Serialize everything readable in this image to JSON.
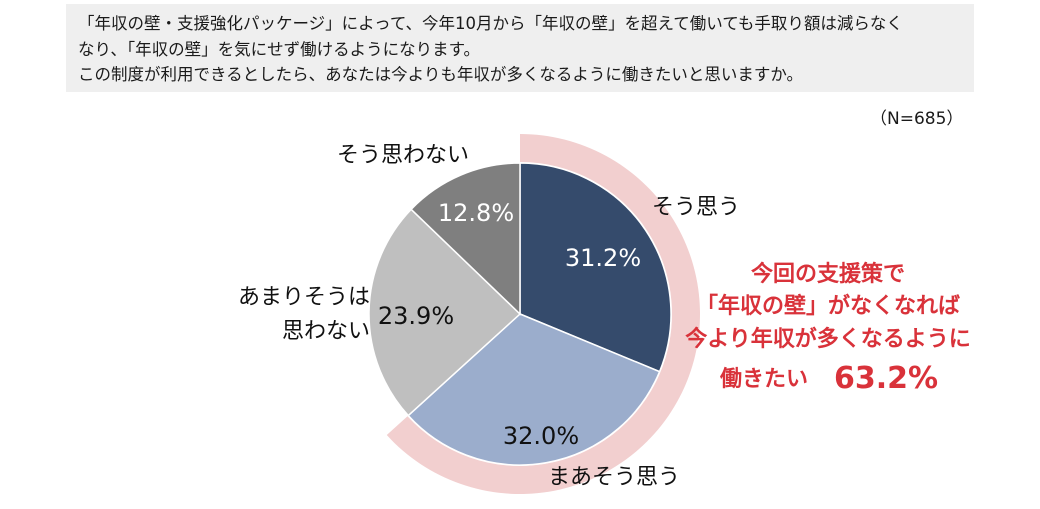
{
  "question": {
    "lines": [
      "「年収の壁・支援強化パッケージ」によって、今年10月から「年収の壁」を超えて働いても手取り額は減らなく",
      "なり、「年収の壁」を気にせず働けるようになります。",
      "この制度が利用できるとしたら、あなたは今よりも年収が多くなるように働きたいと思いますか。"
    ]
  },
  "sample_size": "（N=685）",
  "chart_data": {
    "type": "pie",
    "title": "",
    "slices": [
      {
        "label": "そう思う",
        "value": 31.2,
        "display": "31.2%",
        "color": "#354b6c",
        "text_color": "#ffffff"
      },
      {
        "label": "まあそう思う",
        "value": 32.0,
        "display": "32.0%",
        "color": "#9badcc",
        "text_color": "#111111"
      },
      {
        "label": "あまりそうは思わない",
        "value": 23.9,
        "display": "23.9%",
        "color": "#bfbfbf",
        "text_color": "#111111"
      },
      {
        "label": "そう思わない",
        "value": 12.8,
        "display": "12.8%",
        "color": "#7f7f7f",
        "text_color": "#ffffff"
      }
    ],
    "category_labels": {
      "so_omou": "そう思う",
      "maa_so_omou": "まあそう思う",
      "amari_line1": "あまりそうは",
      "amari_line2": "思わない",
      "so_omowanai": "そう思わない"
    },
    "highlight": {
      "covers": [
        "そう思う",
        "まあそう思う"
      ],
      "color": "#f2cfcf",
      "lines": [
        "今回の支援策で",
        "「年収の壁」がなくなれば",
        "今より年収が多くなるように",
        "働きたい"
      ],
      "total": "63.2%",
      "text_color": "#d9323a"
    }
  }
}
